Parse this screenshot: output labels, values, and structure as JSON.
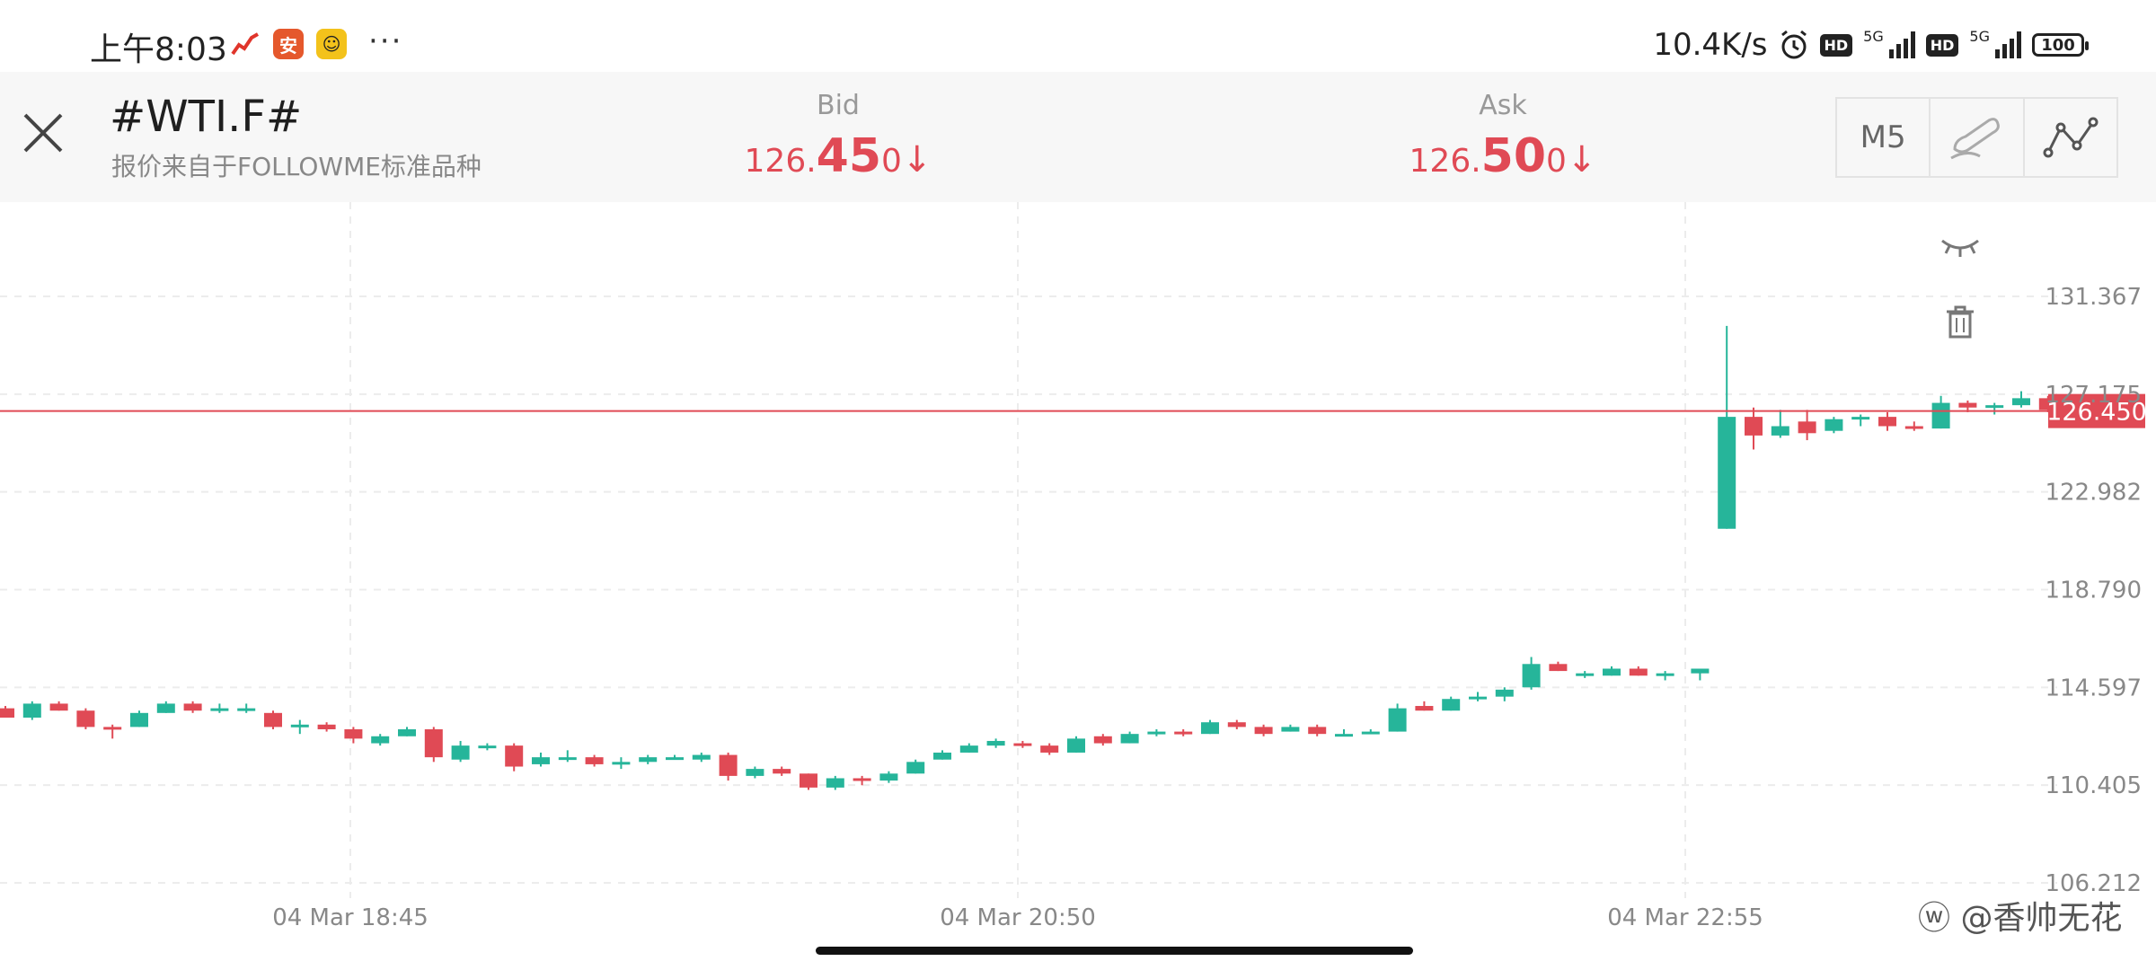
{
  "status_bar": {
    "time": "上午8:03",
    "more": "···",
    "net_speed": "10.4K/s",
    "hd": "HD",
    "network": "5G",
    "battery": "100",
    "icons": [
      "stock-app-icon",
      "pingan-securities-icon",
      "yellow-app-icon",
      "alarm-icon",
      "signal-icon"
    ]
  },
  "header": {
    "symbol": "#WTI.F#",
    "source": "报价来自于FOLLOWME标准品种",
    "bid": {
      "label": "Bid",
      "prefix": "126.",
      "big": "45",
      "suffix": "0",
      "arrow": "↓"
    },
    "ask": {
      "label": "Ask",
      "prefix": "126.",
      "big": "50",
      "suffix": "0",
      "arrow": "↓"
    },
    "toolbar": {
      "timeframe": "M5"
    }
  },
  "colors": {
    "up": "#26b59a",
    "down": "#e04a55",
    "price_line": "#e04a55"
  },
  "chart_data": {
    "type": "candlestick",
    "ylim": [
      106.212,
      131.367
    ],
    "y_ticks": [
      "131.367",
      "127.175",
      "122.982",
      "118.790",
      "114.597",
      "110.405",
      "106.212"
    ],
    "x_ticks": [
      "04 Mar  18:45",
      "04 Mar  20:50",
      "04 Mar  22:55"
    ],
    "current_price": "126.450",
    "gap_index": 63,
    "candles": [
      [
        113.7,
        113.8,
        113.3,
        113.3
      ],
      [
        113.3,
        114.0,
        113.2,
        113.9
      ],
      [
        113.9,
        114.0,
        113.6,
        113.6
      ],
      [
        113.6,
        113.7,
        112.8,
        112.9
      ],
      [
        112.9,
        113.0,
        112.4,
        112.8
      ],
      [
        112.9,
        113.6,
        112.9,
        113.5
      ],
      [
        113.5,
        114.0,
        113.5,
        113.9
      ],
      [
        113.9,
        114.0,
        113.5,
        113.6
      ],
      [
        113.6,
        113.9,
        113.5,
        113.7
      ],
      [
        113.6,
        113.9,
        113.5,
        113.7
      ],
      [
        113.5,
        113.6,
        112.8,
        112.9
      ],
      [
        112.9,
        113.2,
        112.6,
        113.0
      ],
      [
        113.0,
        113.1,
        112.7,
        112.8
      ],
      [
        112.8,
        112.9,
        112.2,
        112.4
      ],
      [
        112.2,
        112.6,
        112.1,
        112.5
      ],
      [
        112.5,
        112.9,
        112.5,
        112.8
      ],
      [
        112.8,
        112.9,
        111.4,
        111.6
      ],
      [
        111.5,
        112.3,
        111.4,
        112.1
      ],
      [
        112.0,
        112.2,
        111.9,
        112.1
      ],
      [
        112.1,
        112.2,
        111.0,
        111.2
      ],
      [
        111.3,
        111.8,
        111.2,
        111.6
      ],
      [
        111.6,
        111.9,
        111.4,
        111.6
      ],
      [
        111.6,
        111.7,
        111.2,
        111.3
      ],
      [
        111.3,
        111.6,
        111.1,
        111.4
      ],
      [
        111.4,
        111.7,
        111.3,
        111.6
      ],
      [
        111.6,
        111.7,
        111.5,
        111.6
      ],
      [
        111.5,
        111.8,
        111.4,
        111.7
      ],
      [
        111.7,
        111.8,
        110.6,
        110.8
      ],
      [
        110.8,
        111.2,
        110.7,
        111.1
      ],
      [
        111.1,
        111.2,
        110.8,
        110.9
      ],
      [
        110.9,
        110.9,
        110.2,
        110.3
      ],
      [
        110.3,
        110.8,
        110.2,
        110.7
      ],
      [
        110.7,
        110.8,
        110.4,
        110.6
      ],
      [
        110.6,
        111.0,
        110.5,
        110.9
      ],
      [
        110.9,
        111.5,
        110.9,
        111.4
      ],
      [
        111.5,
        111.9,
        111.5,
        111.8
      ],
      [
        111.8,
        112.2,
        111.8,
        112.1
      ],
      [
        112.1,
        112.4,
        112.0,
        112.3
      ],
      [
        112.2,
        112.3,
        112.0,
        112.1
      ],
      [
        112.1,
        112.2,
        111.7,
        111.8
      ],
      [
        111.8,
        112.5,
        111.8,
        112.4
      ],
      [
        112.5,
        112.6,
        112.1,
        112.2
      ],
      [
        112.2,
        112.7,
        112.2,
        112.6
      ],
      [
        112.6,
        112.8,
        112.5,
        112.7
      ],
      [
        112.7,
        112.8,
        112.5,
        112.6
      ],
      [
        112.6,
        113.2,
        112.6,
        113.1
      ],
      [
        113.1,
        113.2,
        112.8,
        112.9
      ],
      [
        112.9,
        113.0,
        112.5,
        112.6
      ],
      [
        112.7,
        113.0,
        112.7,
        112.9
      ],
      [
        112.9,
        113.0,
        112.5,
        112.6
      ],
      [
        112.6,
        112.8,
        112.5,
        112.6
      ],
      [
        112.6,
        112.8,
        112.6,
        112.7
      ],
      [
        112.7,
        113.9,
        112.7,
        113.7
      ],
      [
        113.8,
        114.0,
        113.6,
        113.6
      ],
      [
        113.6,
        114.2,
        113.6,
        114.1
      ],
      [
        114.1,
        114.4,
        114.0,
        114.2
      ],
      [
        114.2,
        114.6,
        114.0,
        114.5
      ],
      [
        114.6,
        115.9,
        114.5,
        115.6
      ],
      [
        115.6,
        115.7,
        115.3,
        115.3
      ],
      [
        115.1,
        115.3,
        115.0,
        115.2
      ],
      [
        115.1,
        115.5,
        115.1,
        115.4
      ],
      [
        115.4,
        115.5,
        115.1,
        115.1
      ],
      [
        115.1,
        115.3,
        114.9,
        115.2
      ],
      [
        115.2,
        115.4,
        114.9,
        115.4
      ],
      [
        121.4,
        130.1,
        121.4,
        126.2
      ],
      [
        126.2,
        126.6,
        124.8,
        125.4
      ],
      [
        125.4,
        126.5,
        125.3,
        125.8
      ],
      [
        126.0,
        126.5,
        125.2,
        125.5
      ],
      [
        125.6,
        126.2,
        125.5,
        126.1
      ],
      [
        126.1,
        126.3,
        125.8,
        126.2
      ],
      [
        126.2,
        126.4,
        125.6,
        125.8
      ],
      [
        125.8,
        126.0,
        125.6,
        125.7
      ],
      [
        125.7,
        127.1,
        125.7,
        126.8
      ],
      [
        126.8,
        126.9,
        126.4,
        126.6
      ],
      [
        126.6,
        126.8,
        126.3,
        126.7
      ],
      [
        126.7,
        127.3,
        126.6,
        127.0
      ],
      [
        127.0,
        127.1,
        126.4,
        126.5
      ]
    ]
  }
}
